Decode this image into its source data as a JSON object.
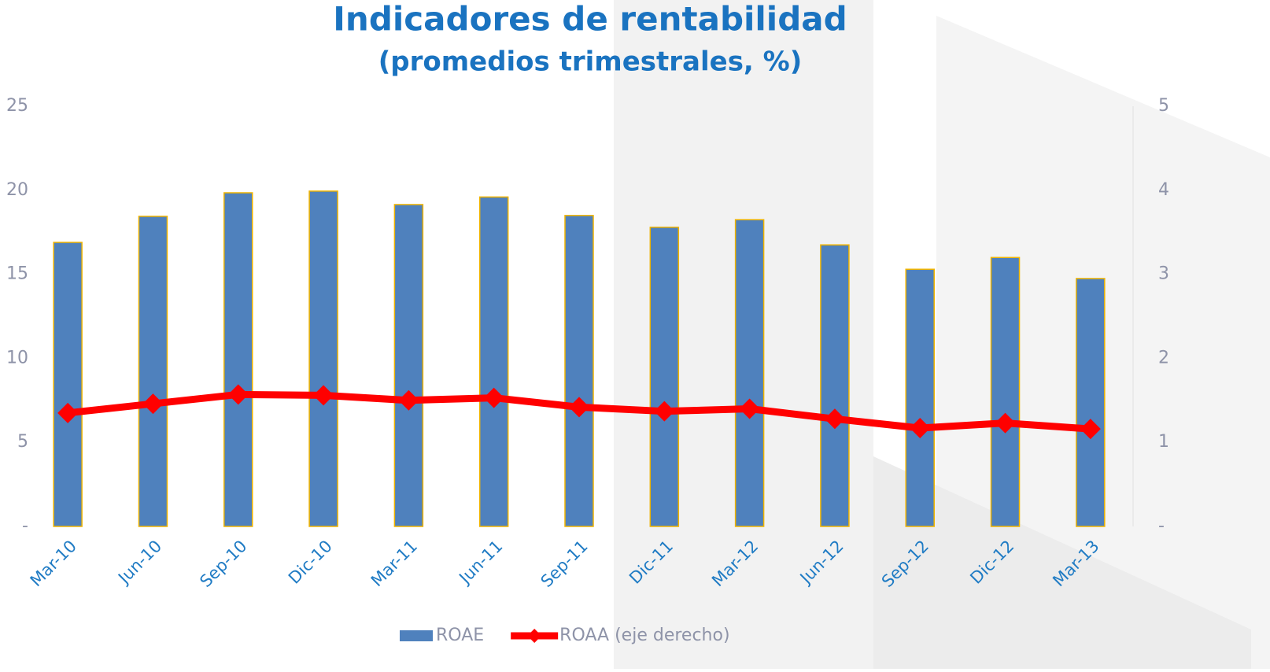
{
  "chart_data": {
    "type": "bar",
    "title": "Indicadores de rentabilidad",
    "subtitle": "(promedios trimestrales, %)",
    "categories": [
      "Mar-10",
      "Jun-10",
      "Sep-10",
      "Dic-10",
      "Mar-11",
      "Jun-11",
      "Sep-11",
      "Dic-11",
      "Mar-12",
      "Jun-12",
      "Sep-12",
      "Dic-12",
      "Mar-13"
    ],
    "series": [
      {
        "name": "ROAE",
        "type": "bar",
        "color": "#4f81bd",
        "values": [
          16.9,
          18.45,
          19.85,
          19.95,
          19.15,
          19.6,
          18.5,
          17.8,
          18.25,
          16.75,
          15.3,
          16.0,
          14.75
        ]
      },
      {
        "name": "ROAA (eje derecho)",
        "type": "line",
        "axis": "y2",
        "color": "#ff0000",
        "values": [
          1.35,
          1.46,
          1.57,
          1.56,
          1.5,
          1.53,
          1.42,
          1.37,
          1.4,
          1.28,
          1.17,
          1.23,
          1.16
        ]
      }
    ],
    "ylim": [
      0,
      25
    ],
    "yticks": [
      {
        "value": 0,
        "label": "-"
      },
      5,
      10,
      15,
      20,
      25
    ],
    "y2lim": [
      0,
      5
    ],
    "y2ticks": [
      {
        "value": 0,
        "label": "-"
      },
      1,
      2,
      3,
      4,
      5
    ],
    "legend": "bottom"
  }
}
